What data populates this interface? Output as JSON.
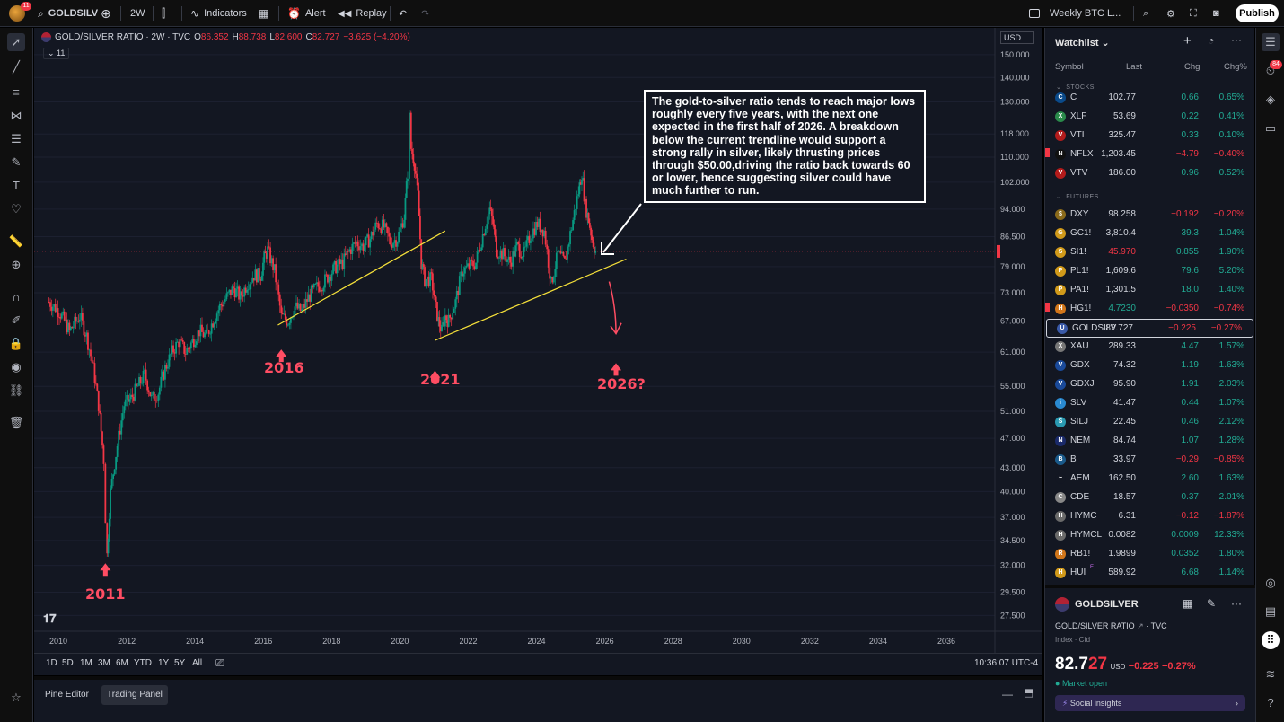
{
  "topbar": {
    "avatar_badge": "11",
    "symbol": "GOLDSILV",
    "interval": "2W",
    "indicators": "Indicators",
    "alert": "Alert",
    "replay": "Replay",
    "layout_name": "Weekly BTC L...",
    "publish": "Publish"
  },
  "chart": {
    "title": "GOLD/SILVER RATIO · 2W · TVC",
    "ohlc": {
      "o_label": "O",
      "o": "86.352",
      "h_label": "H",
      "h": "88.738",
      "l_label": "L",
      "l": "82.600",
      "c_label": "C",
      "c": "82.727",
      "change": "−3.625 (−4.20%)"
    },
    "indicator_count": "11",
    "currency": "USD",
    "price_labels": [
      "150.000",
      "140.000",
      "130.000",
      "118.000",
      "110.000",
      "102.000",
      "94.000",
      "86.500",
      "79.000",
      "73.000",
      "67.000",
      "61.000",
      "55.000",
      "51.000",
      "47.000",
      "43.000",
      "40.000",
      "37.000",
      "34.500",
      "32.000",
      "29.500",
      "27.500"
    ],
    "current_price": "82.727",
    "year_labels": [
      "2010",
      "2012",
      "2014",
      "2016",
      "2018",
      "2020",
      "2022",
      "2024",
      "2026",
      "2028",
      "2030",
      "2032",
      "2034",
      "2036"
    ],
    "note": "The gold-to-silver ratio tends to reach major lows roughly every five years, with the next one expected in the first half of 2026. A breakdown below the current trendline would support a strong rally in silver, likely thrusting prices through $50.00,driving the ratio back towards 60 or lower, hence suggesting silver could have much further to run.",
    "annotations": {
      "a2011": "2011",
      "a2016": "2016",
      "a2021": "2021",
      "a2026": "2026?"
    },
    "colors": {
      "up": "#089981",
      "down": "#f23645",
      "trendline": "#f5e03a",
      "annotation": "#ff4d63"
    }
  },
  "chart_data": {
    "type": "candlestick",
    "title": "GOLD/SILVER RATIO · 2W · TVC",
    "x_range": [
      2009.6,
      2037.5
    ],
    "y_range_log": [
      26.5,
      152
    ],
    "series": [
      {
        "name": "GOLD/SILVER RATIO",
        "points": [
          [
            2009.7,
            71
          ],
          [
            2010.0,
            69
          ],
          [
            2010.3,
            65
          ],
          [
            2010.6,
            68
          ],
          [
            2010.8,
            64
          ],
          [
            2011.0,
            58
          ],
          [
            2011.15,
            52
          ],
          [
            2011.3,
            44
          ],
          [
            2011.35,
            37
          ],
          [
            2011.4,
            33
          ],
          [
            2011.5,
            40
          ],
          [
            2011.7,
            46
          ],
          [
            2011.9,
            52
          ],
          [
            2012.1,
            53
          ],
          [
            2012.3,
            55
          ],
          [
            2012.5,
            57
          ],
          [
            2012.7,
            53
          ],
          [
            2012.9,
            54
          ],
          [
            2013.1,
            58
          ],
          [
            2013.3,
            61
          ],
          [
            2013.5,
            63
          ],
          [
            2013.7,
            61
          ],
          [
            2013.9,
            63
          ],
          [
            2014.1,
            65
          ],
          [
            2014.3,
            64
          ],
          [
            2014.5,
            67
          ],
          [
            2014.7,
            70
          ],
          [
            2014.9,
            72
          ],
          [
            2015.1,
            74
          ],
          [
            2015.3,
            72
          ],
          [
            2015.5,
            75
          ],
          [
            2015.7,
            77
          ],
          [
            2015.9,
            77
          ],
          [
            2016.0,
            81
          ],
          [
            2016.1,
            83
          ],
          [
            2016.3,
            78
          ],
          [
            2016.5,
            68
          ],
          [
            2016.7,
            67
          ],
          [
            2016.9,
            70
          ],
          [
            2017.1,
            69
          ],
          [
            2017.3,
            72
          ],
          [
            2017.5,
            74
          ],
          [
            2017.7,
            75
          ],
          [
            2017.9,
            77
          ],
          [
            2018.1,
            79
          ],
          [
            2018.3,
            80
          ],
          [
            2018.5,
            83
          ],
          [
            2018.7,
            85
          ],
          [
            2018.9,
            84
          ],
          [
            2019.1,
            86
          ],
          [
            2019.3,
            90
          ],
          [
            2019.5,
            89
          ],
          [
            2019.7,
            85
          ],
          [
            2019.9,
            86
          ],
          [
            2020.1,
            92
          ],
          [
            2020.2,
            105
          ],
          [
            2020.25,
            124
          ],
          [
            2020.3,
            113
          ],
          [
            2020.4,
            108
          ],
          [
            2020.5,
            98
          ],
          [
            2020.6,
            80
          ],
          [
            2020.7,
            76
          ],
          [
            2020.9,
            76
          ],
          [
            2021.0,
            71
          ],
          [
            2021.1,
            67
          ],
          [
            2021.2,
            65
          ],
          [
            2021.3,
            68
          ],
          [
            2021.4,
            67
          ],
          [
            2021.6,
            71
          ],
          [
            2021.8,
            78
          ],
          [
            2022.0,
            79
          ],
          [
            2022.2,
            80
          ],
          [
            2022.4,
            87
          ],
          [
            2022.6,
            94
          ],
          [
            2022.7,
            90
          ],
          [
            2022.8,
            83
          ],
          [
            2023.0,
            82
          ],
          [
            2023.2,
            80
          ],
          [
            2023.4,
            84
          ],
          [
            2023.6,
            82
          ],
          [
            2023.8,
            87
          ],
          [
            2024.0,
            90
          ],
          [
            2024.2,
            88
          ],
          [
            2024.4,
            75
          ],
          [
            2024.6,
            82
          ],
          [
            2024.8,
            80
          ],
          [
            2025.0,
            89
          ],
          [
            2025.2,
            99
          ],
          [
            2025.3,
            105
          ],
          [
            2025.4,
            95
          ],
          [
            2025.5,
            91
          ],
          [
            2025.6,
            86
          ],
          [
            2025.7,
            82.7
          ]
        ]
      }
    ],
    "annotations": [
      "2011",
      "2016",
      "2021",
      "2026?"
    ],
    "trendlines": [
      {
        "from": [
          2016.4,
          66.2
        ],
        "to": [
          2021.3,
          88
        ]
      },
      {
        "from": [
          2021.0,
          63.2
        ],
        "to": [
          2026.6,
          80.8
        ]
      }
    ]
  },
  "range_bar": {
    "ranges": [
      "1D",
      "5D",
      "1M",
      "3M",
      "6M",
      "YTD",
      "1Y",
      "5Y",
      "All"
    ],
    "clock": "10:36:07 UTC-4"
  },
  "bottom_panel": {
    "tab1": "Pine Editor",
    "tab2": "Trading Panel"
  },
  "watchlist": {
    "title": "Watchlist",
    "headers": {
      "symbol": "Symbol",
      "last": "Last",
      "chg": "Chg",
      "pct": "Chg%"
    },
    "sections": {
      "stocks": "STOCKS",
      "futures": "FUTURES"
    },
    "stocks": [
      {
        "sym": "C",
        "last": "102.77",
        "chg": "0.66",
        "pct": "0.65%",
        "dir": "pos",
        "icon": "C",
        "color": "#0a4a8a"
      },
      {
        "sym": "XLF",
        "last": "53.69",
        "chg": "0.22",
        "pct": "0.41%",
        "dir": "pos",
        "icon": "X",
        "color": "#2a8a4a"
      },
      {
        "sym": "VTI",
        "last": "325.47",
        "chg": "0.33",
        "pct": "0.10%",
        "dir": "pos",
        "icon": "V",
        "color": "#b31b1b"
      },
      {
        "sym": "NFLX",
        "last": "1,203.45",
        "chg": "−4.79",
        "pct": "−0.40%",
        "dir": "neg",
        "icon": "N",
        "color": "#111111",
        "flag": true
      },
      {
        "sym": "VTV",
        "last": "186.00",
        "chg": "0.96",
        "pct": "0.52%",
        "dir": "pos",
        "icon": "V",
        "color": "#b31b1b"
      }
    ],
    "futures": [
      {
        "sym": "DXY",
        "last": "98.258",
        "chg": "−0.192",
        "pct": "−0.20%",
        "dir": "neg",
        "icon": "$",
        "color": "#8a6a1a"
      },
      {
        "sym": "GC1!",
        "last": "3,810.4",
        "chg": "39.3",
        "pct": "1.04%",
        "dir": "pos",
        "icon": "G",
        "color": "#d19a1a"
      },
      {
        "sym": "SI1!",
        "last": "45.970",
        "chg": "0.855",
        "pct": "1.90%",
        "dir": "pos",
        "icon": "S",
        "color": "#d19a1a",
        "last_neg": true
      },
      {
        "sym": "PL1!",
        "last": "1,609.6",
        "chg": "79.6",
        "pct": "5.20%",
        "dir": "pos",
        "icon": "P",
        "color": "#d19a1a"
      },
      {
        "sym": "PA1!",
        "last": "1,301.5",
        "chg": "18.0",
        "pct": "1.40%",
        "dir": "pos",
        "icon": "P",
        "color": "#d19a1a"
      },
      {
        "sym": "HG1!",
        "last": "4.7230",
        "chg": "−0.0350",
        "pct": "−0.74%",
        "dir": "neg",
        "icon": "H",
        "color": "#d1761a",
        "flag": true,
        "last_pos": true
      },
      {
        "sym": "GOLDSILV",
        "last": "82.727",
        "chg": "−0.225",
        "pct": "−0.27%",
        "dir": "neg",
        "icon": "U",
        "color": "#3a5aa8",
        "selected": true
      },
      {
        "sym": "XAU",
        "last": "289.33",
        "chg": "4.47",
        "pct": "1.57%",
        "dir": "pos",
        "icon": "X",
        "color": "#777777"
      },
      {
        "sym": "GDX",
        "last": "74.32",
        "chg": "1.19",
        "pct": "1.63%",
        "dir": "pos",
        "icon": "V",
        "color": "#1a4a9a"
      },
      {
        "sym": "GDXJ",
        "last": "95.90",
        "chg": "1.91",
        "pct": "2.03%",
        "dir": "pos",
        "icon": "V",
        "color": "#1a4a9a"
      },
      {
        "sym": "SLV",
        "last": "41.47",
        "chg": "0.44",
        "pct": "1.07%",
        "dir": "pos",
        "icon": "i",
        "color": "#2a8ad1"
      },
      {
        "sym": "SILJ",
        "last": "22.45",
        "chg": "0.46",
        "pct": "2.12%",
        "dir": "pos",
        "icon": "S",
        "color": "#2a9ab1"
      },
      {
        "sym": "NEM",
        "last": "84.74",
        "chg": "1.07",
        "pct": "1.28%",
        "dir": "pos",
        "icon": "N",
        "color": "#1a2a6a"
      },
      {
        "sym": "B",
        "last": "33.97",
        "chg": "−0.29",
        "pct": "−0.85%",
        "dir": "neg",
        "icon": "B",
        "color": "#1a5a8a"
      },
      {
        "sym": "AEM",
        "last": "162.50",
        "chg": "2.60",
        "pct": "1.63%",
        "dir": "pos",
        "icon": "~",
        "color": "#131722"
      },
      {
        "sym": "CDE",
        "last": "18.57",
        "chg": "0.37",
        "pct": "2.01%",
        "dir": "pos",
        "icon": "C",
        "color": "#888888"
      },
      {
        "sym": "HYMC",
        "last": "6.31",
        "chg": "−0.12",
        "pct": "−1.87%",
        "dir": "neg",
        "icon": "H",
        "color": "#6a6a6a"
      },
      {
        "sym": "HYMCL",
        "last": "0.0082",
        "chg": "0.0009",
        "pct": "12.33%",
        "dir": "pos",
        "icon": "H",
        "color": "#6a6a6a"
      },
      {
        "sym": "RB1!",
        "last": "1.9899",
        "chg": "0.0352",
        "pct": "1.80%",
        "dir": "pos",
        "icon": "R",
        "color": "#d1761a"
      },
      {
        "sym": "HUI",
        "last": "589.92",
        "chg": "6.68",
        "pct": "1.14%",
        "dir": "pos",
        "icon": "H",
        "color": "#d19a1a",
        "sup": "E"
      }
    ]
  },
  "details": {
    "symbol": "GOLDSILVER",
    "name": "GOLD/SILVER RATIO",
    "exchange": "· TVC",
    "type": "Index · Cfd",
    "price_main": "82.7",
    "price_tail": "27",
    "currency": "USD",
    "change": "−0.225",
    "pct": "−0.27%",
    "status": "Market open",
    "insights": "Social insights"
  },
  "rightbar": {
    "badge": "84"
  }
}
